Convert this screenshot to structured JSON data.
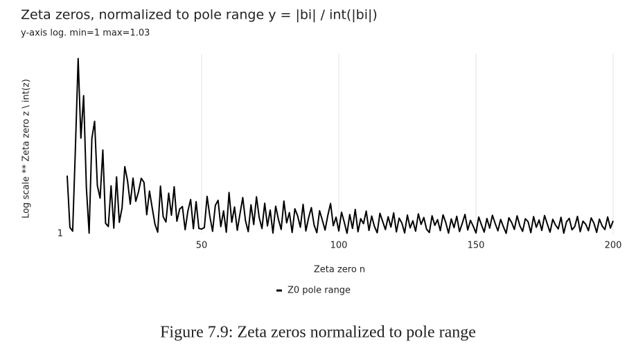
{
  "chart_data": {
    "type": "line",
    "title": "Zeta zeros, normalized to pole range y = |bi| / int(|bi|)",
    "subtitle": "y-axis log. min=1 max=1.03",
    "y_label": "Log scale  **  Zeta zero z \\ int(z)",
    "x_label": "Zeta zero n",
    "caption": "Figure 7.9: Zeta zeros normalized to pole range",
    "log_y": true,
    "xgrid": true,
    "xlim": [
      0,
      200
    ],
    "xticks": [
      50,
      100,
      150,
      200
    ],
    "ylim": [
      1,
      1.03
    ],
    "yticks": [
      1
    ],
    "x": [
      1,
      2,
      3,
      4,
      5,
      6,
      7,
      8,
      9,
      10,
      11,
      12,
      13,
      14,
      15,
      16,
      17,
      18,
      19,
      20,
      21,
      22,
      23,
      24,
      25,
      26,
      27,
      28,
      29,
      30,
      31,
      32,
      33,
      34,
      35,
      36,
      37,
      38,
      39,
      40,
      41,
      42,
      43,
      44,
      45,
      46,
      47,
      48,
      49,
      50,
      51,
      52,
      53,
      54,
      55,
      56,
      57,
      58,
      59,
      60,
      61,
      62,
      63,
      64,
      65,
      66,
      67,
      68,
      69,
      70,
      71,
      72,
      73,
      74,
      75,
      76,
      77,
      78,
      79,
      80,
      81,
      82,
      83,
      84,
      85,
      86,
      87,
      88,
      89,
      90,
      91,
      92,
      93,
      94,
      95,
      96,
      97,
      98,
      99,
      100,
      101,
      102,
      103,
      104,
      105,
      106,
      107,
      108,
      109,
      110,
      111,
      112,
      113,
      114,
      115,
      116,
      117,
      118,
      119,
      120,
      121,
      122,
      123,
      124,
      125,
      126,
      127,
      128,
      129,
      130,
      131,
      132,
      133,
      134,
      135,
      136,
      137,
      138,
      139,
      140,
      141,
      142,
      143,
      144,
      145,
      146,
      147,
      148,
      149,
      150,
      151,
      152,
      153,
      154,
      155,
      156,
      157,
      158,
      159,
      160,
      161,
      162,
      163,
      164,
      165,
      166,
      167,
      168,
      169,
      170,
      171,
      172,
      173,
      174,
      175,
      176,
      177,
      178,
      179,
      180,
      181,
      182,
      183,
      184,
      185,
      186,
      187,
      188,
      189,
      190,
      191,
      192,
      193,
      194,
      195,
      196,
      197,
      198,
      199,
      200
    ],
    "series": [
      {
        "name": "Z0 pole range",
        "color": "#000000",
        "values": [
          1.00962,
          1.00105,
          1.00043,
          1.01416,
          1.02922,
          1.01584,
          1.02297,
          1.00761,
          1.00011,
          1.01579,
          1.01866,
          1.00797,
          1.00588,
          1.01386,
          1.00173,
          1.00119,
          1.00792,
          1.00093,
          1.0094,
          1.00188,
          1.00427,
          1.0111,
          1.00876,
          1.00489,
          1.00919,
          1.00535,
          1.00693,
          1.00916,
          1.00848,
          1.00315,
          1.00704,
          1.00425,
          1.00158,
          1.00027,
          1.00788,
          1.00281,
          1.00195,
          1.0067,
          1.00306,
          1.00776,
          1.00207,
          1.00407,
          1.00449,
          1.00067,
          1.00374,
          1.00565,
          1.00084,
          1.0053,
          1.00088,
          1.00078,
          1.00102,
          1.00617,
          1.00289,
          1.00041,
          1.00468,
          1.00552,
          1.00118,
          1.00377,
          1.00025,
          1.00681,
          1.0019,
          1.00442,
          1.00058,
          1.00331,
          1.00597,
          1.00213,
          1.00036,
          1.00478,
          1.00152,
          1.0061,
          1.00266,
          1.00087,
          1.00503,
          1.00129,
          1.00391,
          1.00012,
          1.00455,
          1.00238,
          1.00071,
          1.0054,
          1.00181,
          1.00349,
          1.00022,
          1.00412,
          1.00296,
          1.00108,
          1.00485,
          1.00047,
          1.00263,
          1.00431,
          1.00145,
          1.00018,
          1.0038,
          1.00225,
          1.00061,
          1.00302,
          1.00499,
          1.00133,
          1.00274,
          1.00046,
          1.00356,
          1.00191,
          1.00009,
          1.00317,
          1.00088,
          1.00402,
          1.00033,
          1.00249,
          1.00166,
          1.00374,
          1.00055,
          1.00292,
          1.0012,
          1.00017,
          1.00338,
          1.00203,
          1.00069,
          1.00281,
          1.0011,
          1.00344,
          1.00031,
          1.00258,
          1.00176,
          1.00015,
          1.00309,
          1.00097,
          1.00214,
          1.00043,
          1.00329,
          1.00155,
          1.00268,
          1.00075,
          1.00021,
          1.00296,
          1.00139,
          1.00233,
          1.00052,
          1.00312,
          1.00184,
          1.00011,
          1.00245,
          1.00101,
          1.00288,
          1.00037,
          1.00171,
          1.00319,
          1.00063,
          1.00221,
          1.00125,
          1.00014,
          1.00276,
          1.00148,
          1.00028,
          1.00252,
          1.00093,
          1.00305,
          1.0017,
          1.00049,
          1.00236,
          1.00116,
          1.00008,
          1.00264,
          1.00187,
          1.00072,
          1.00295,
          1.00132,
          1.0004,
          1.00248,
          1.00199,
          1.00019,
          1.00283,
          1.00107,
          1.00227,
          1.00056,
          1.00301,
          1.00161,
          1.00026,
          1.00239,
          1.00143,
          1.00081,
          1.00272,
          1.0001,
          1.00196,
          1.00254,
          1.00066,
          1.00118,
          1.00287,
          1.00034,
          1.00208,
          1.00157,
          1.00051,
          1.00261,
          1.00174,
          1.00023,
          1.00242,
          1.00129,
          1.0007,
          1.00278,
          1.00094,
          1.00213
        ]
      }
    ]
  }
}
